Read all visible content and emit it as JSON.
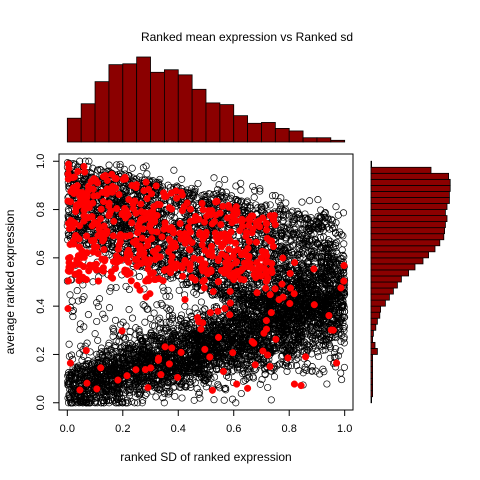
{
  "chart_data": {
    "type": "scatter",
    "title": "Ranked mean expression vs Ranked sd",
    "xlabel": "ranked SD of ranked expression",
    "ylabel": "average ranked expression",
    "xlim": [
      -0.03,
      1.03
    ],
    "ylim": [
      -0.03,
      1.03
    ],
    "x_ticks": [
      "0.0",
      "0.2",
      "0.4",
      "0.6",
      "0.8",
      "1.0"
    ],
    "y_ticks": [
      "0.0",
      "0.2",
      "0.4",
      "0.6",
      "0.8",
      "1.0"
    ],
    "grid": false,
    "series": [
      {
        "marker": "open-circle",
        "color": "#000000",
        "count_estimate": 20000
      },
      {
        "marker": "filled-circle",
        "color": "#ff0000",
        "count_estimate": 700
      }
    ],
    "top_histogram": {
      "bin_width": 0.05,
      "bin_starts": [
        0.0,
        0.05,
        0.1,
        0.15,
        0.2,
        0.25,
        0.3,
        0.35,
        0.4,
        0.45,
        0.5,
        0.55,
        0.6,
        0.65,
        0.7,
        0.75,
        0.8,
        0.85,
        0.9,
        0.95
      ],
      "relative_counts": [
        0.28,
        0.45,
        0.71,
        0.91,
        0.92,
        1.0,
        0.82,
        0.85,
        0.79,
        0.62,
        0.46,
        0.44,
        0.31,
        0.22,
        0.23,
        0.16,
        0.13,
        0.05,
        0.05,
        0.02
      ],
      "color": "#8b0000"
    },
    "right_histogram": {
      "bin_width": 0.025,
      "bin_starts": [
        0.0,
        0.025,
        0.05,
        0.075,
        0.1,
        0.125,
        0.15,
        0.175,
        0.2,
        0.225,
        0.25,
        0.275,
        0.3,
        0.325,
        0.35,
        0.375,
        0.4,
        0.425,
        0.45,
        0.475,
        0.5,
        0.525,
        0.55,
        0.575,
        0.6,
        0.625,
        0.65,
        0.675,
        0.7,
        0.725,
        0.75,
        0.775,
        0.8,
        0.825,
        0.85,
        0.875,
        0.9,
        0.925,
        0.95,
        0.975
      ],
      "relative_counts": [
        0.0,
        0.02,
        0.02,
        0.02,
        0.02,
        0.02,
        0.02,
        0.02,
        0.08,
        0.05,
        0.02,
        0.03,
        0.06,
        0.08,
        0.11,
        0.12,
        0.18,
        0.23,
        0.28,
        0.33,
        0.38,
        0.47,
        0.55,
        0.65,
        0.72,
        0.8,
        0.86,
        0.91,
        0.92,
        0.93,
        0.95,
        0.93,
        0.95,
        0.98,
        0.98,
        0.99,
        0.99,
        0.97,
        0.75,
        0.0
      ],
      "color": "#8b0000"
    }
  }
}
